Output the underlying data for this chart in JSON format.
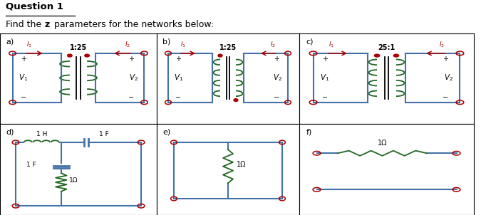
{
  "title": "Question 1",
  "subtitle_pre": "Find the ",
  "subtitle_bold": "z",
  "subtitle_post": " parameters for the networks below:",
  "bg_color": "#ffffff",
  "wire_color": "#4472a8",
  "red_color": "#aa0000",
  "green_color": "#226622",
  "black": "#000000",
  "panel_labels": [
    "a)",
    "b)",
    "c)",
    "d)",
    "e)",
    "f)"
  ],
  "ratios": [
    "1:25",
    "1:25",
    "25:1"
  ],
  "figsize": [
    6.75,
    3.02
  ],
  "dpi": 100
}
